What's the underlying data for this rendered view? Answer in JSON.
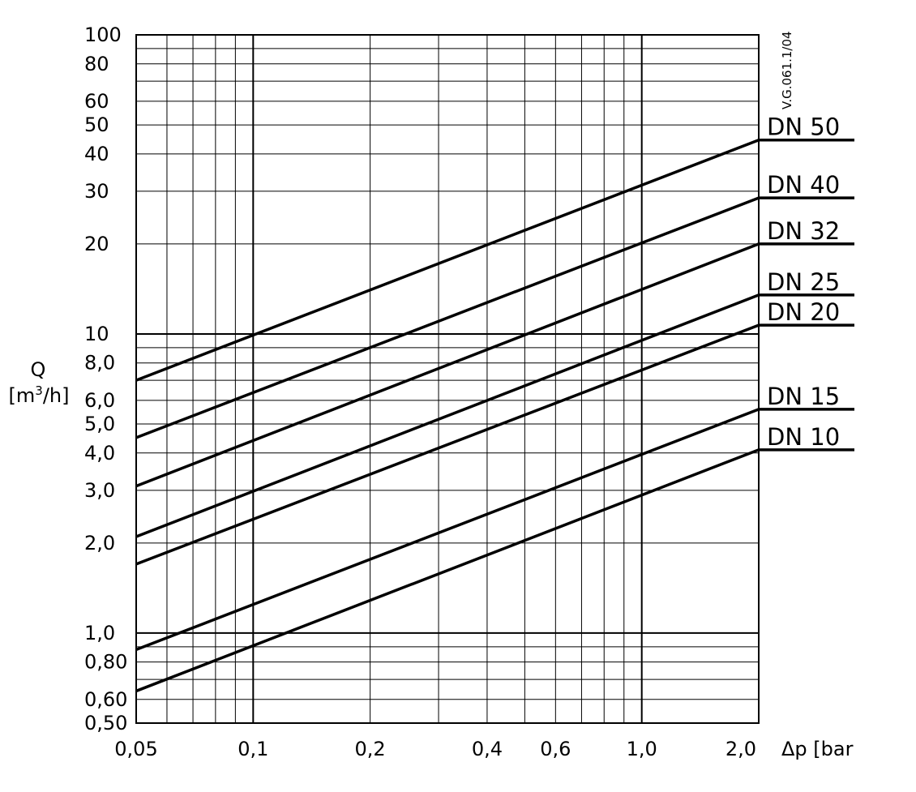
{
  "chart_data": {
    "type": "line",
    "x_scale": "log",
    "y_scale": "log",
    "xlim": [
      0.05,
      2.0
    ],
    "ylim": [
      0.5,
      100
    ],
    "grid": true,
    "x_ticks": [
      "0,05",
      "0,1",
      "0,2",
      "0,4",
      "0,6",
      "1,0",
      "2,0"
    ],
    "x_tick_values": [
      0.05,
      0.1,
      0.2,
      0.4,
      0.6,
      1.0,
      2.0
    ],
    "y_ticks": [
      "100",
      "80",
      "60",
      "50",
      "40",
      "30",
      "20",
      "10",
      "8,0",
      "6,0",
      "5,0",
      "4,0",
      "3,0",
      "2,0",
      "1,0",
      "0,80",
      "0,60",
      "0,50"
    ],
    "y_tick_values": [
      100,
      80,
      60,
      50,
      40,
      30,
      20,
      10,
      8,
      6,
      5,
      4,
      3,
      2,
      1,
      0.8,
      0.6,
      0.5
    ],
    "xlabel": "Δp [bar",
    "ylabel": "Q",
    "ylabel_unit_prefix": "[m",
    "ylabel_unit_sup": "3",
    "ylabel_unit_suffix": "/h]",
    "doc_code": "V.G.061.1/04",
    "series": [
      {
        "name": "DN 50",
        "kvs": 31.5,
        "x": [
          0.05,
          2.0
        ],
        "y": [
          7.0,
          44.5
        ]
      },
      {
        "name": "DN 40",
        "kvs": 20.0,
        "x": [
          0.05,
          2.0
        ],
        "y": [
          4.5,
          28.5
        ]
      },
      {
        "name": "DN 32",
        "kvs": 14.0,
        "x": [
          0.05,
          2.0
        ],
        "y": [
          3.1,
          20.0
        ]
      },
      {
        "name": "DN 25",
        "kvs": 9.5,
        "x": [
          0.05,
          2.0
        ],
        "y": [
          2.1,
          13.5
        ]
      },
      {
        "name": "DN 20",
        "kvs": 7.5,
        "x": [
          0.05,
          2.0
        ],
        "y": [
          1.7,
          10.7
        ]
      },
      {
        "name": "DN 15",
        "kvs": 4.0,
        "x": [
          0.05,
          2.0
        ],
        "y": [
          0.88,
          5.6
        ]
      },
      {
        "name": "DN 10",
        "kvs": 2.9,
        "x": [
          0.05,
          2.0
        ],
        "y": [
          0.64,
          4.1
        ]
      }
    ]
  }
}
